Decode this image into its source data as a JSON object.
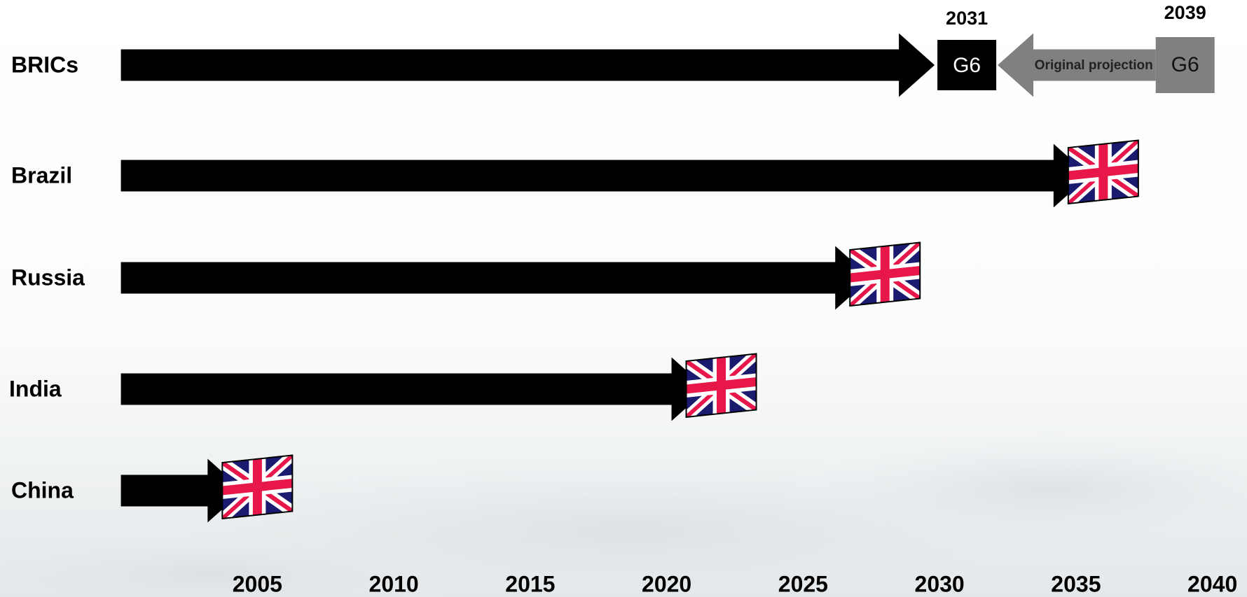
{
  "chart_data": {
    "type": "arrow-timeline",
    "categories": [
      "BRICs",
      "Brazil",
      "Russia",
      "India",
      "China"
    ],
    "values": [
      2031,
      2036,
      2028,
      2022,
      2005
    ],
    "color": "#000000",
    "marker_label": "G6",
    "original_projection": {
      "label": "Original projection",
      "value": 2039,
      "color": "#808080"
    },
    "xlim": [
      2000,
      2041
    ],
    "xticks": [
      2005,
      2010,
      2015,
      2020,
      2025,
      2030,
      2035,
      2040
    ]
  }
}
